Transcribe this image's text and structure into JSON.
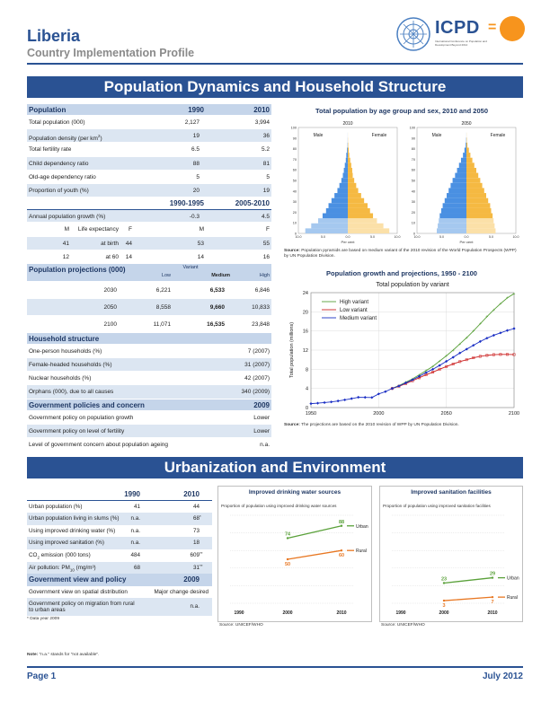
{
  "header": {
    "country": "Liberia",
    "subtitle": "Country Implementation Profile",
    "icpd_word": "ICPD",
    "icpd_eq": "=",
    "icpd_tag": "International Conference on Population and Development Beyond 2014"
  },
  "banners": {
    "section1": "Population Dynamics and Household Structure",
    "section2": "Urbanization and Environment"
  },
  "population": {
    "header": {
      "label": "Population",
      "y1": "1990",
      "y2": "2010"
    },
    "rows": [
      {
        "label": "Total population (000)",
        "v1": "2,127",
        "v2": "3,994"
      },
      {
        "label": "Population density (per km",
        "sup": "2",
        "tail": ")",
        "v1": "19",
        "v2": "36"
      },
      {
        "label": "Total fertility rate",
        "v1": "6.5",
        "v2": "5.2"
      },
      {
        "label": "Child dependency ratio",
        "v1": "88",
        "v2": "81"
      },
      {
        "label": "Old-age dependency ratio",
        "v1": "5",
        "v2": "5"
      },
      {
        "label": "Proportion of youth (%)",
        "v1": "20",
        "v2": "19"
      }
    ],
    "period_header": {
      "p1": "1990-1995",
      "p2": "2005-2010"
    },
    "growth": {
      "label": "Annual population growth (%)",
      "v1": "-0.3",
      "v2": "4.5"
    },
    "life": {
      "label": "Life expectancy",
      "mf": [
        "M",
        "F",
        "M",
        "F"
      ],
      "birth_label": "at birth",
      "birth": [
        "41",
        "44",
        "53",
        "55"
      ],
      "sixty_label": "at 60",
      "sixty": [
        "12",
        "14",
        "14",
        "16"
      ]
    }
  },
  "projections": {
    "title": "Population projections (000)",
    "variant_label": "Variant",
    "cols": [
      "Low",
      "Medium",
      "High"
    ],
    "rows": [
      {
        "year": "2030",
        "vals": [
          "6,221",
          "6,533",
          "6,846"
        ]
      },
      {
        "year": "2050",
        "vals": [
          "8,558",
          "9,660",
          "10,833"
        ]
      },
      {
        "year": "2100",
        "vals": [
          "11,071",
          "16,535",
          "23,848"
        ]
      }
    ]
  },
  "household": {
    "title": "Household structure",
    "rows": [
      {
        "label": "One-person households (%)",
        "value": "7 (2007)"
      },
      {
        "label": "Female-headed households (%)",
        "value": "31 (2007)"
      },
      {
        "label": "Nuclear households (%)",
        "value": "42 (2007)"
      },
      {
        "label": "Orphans (000), due to all causes",
        "value": "340 (2009)"
      }
    ]
  },
  "policies": {
    "title": "Government policies and concern",
    "year": "2009",
    "rows": [
      {
        "label": "Government policy on population growth",
        "value": "Lower"
      },
      {
        "label": "Government policy on level of fertility",
        "value": "Lower"
      },
      {
        "label": "Level of government concern about population ageing",
        "value": "n.a."
      }
    ]
  },
  "pyramid": {
    "title": "Total population by age group and sex, 2010 and 2050",
    "years": [
      "2010",
      "2050"
    ],
    "male_label": "Male",
    "female_label": "Female",
    "y_ticks": [
      "100",
      "90",
      "80",
      "70",
      "60",
      "50",
      "40",
      "30",
      "20",
      "10",
      "0"
    ],
    "x_ticks": [
      "10.0",
      "5.0",
      "0.0",
      "5.0",
      "10.0"
    ],
    "x_label": "Per cent",
    "source_bold": "Source:",
    "source_text": "Population pyramids are based on medium variant of the 2010 revision of the World Population Prospects (WPP) by UN Population Division."
  },
  "growth_chart": {
    "title": "Population growth and projections, 1950 - 2100",
    "subtitle": "Total population by variant",
    "ylabel": "Total population (millions)",
    "source_bold": "Source:",
    "source_text": "The projections are based on the 2010 revision of WPP by UN Population Division.",
    "colors": {
      "high": "#5aa13a",
      "low": "#cc2222",
      "medium": "#1b2fc4"
    }
  },
  "chart_data": [
    {
      "type": "bar",
      "title": "Total population by age group and sex, 2010 and 2050",
      "subtitle": "2010",
      "categories": [
        "0-4",
        "5-9",
        "10-14",
        "15-19",
        "20-24",
        "25-29",
        "30-34",
        "35-39",
        "40-44",
        "45-49",
        "50-54",
        "55-59",
        "60-64",
        "65-69",
        "70-74",
        "75-79",
        "80-84",
        "85-89",
        "90-94",
        "95-99",
        "100+"
      ],
      "series": [
        {
          "name": "Male",
          "values": [
            8.6,
            7.4,
            6.0,
            5.1,
            4.4,
            3.9,
            3.3,
            2.7,
            2.1,
            1.7,
            1.3,
            1.0,
            0.8,
            0.6,
            0.4,
            0.3,
            0.15,
            0.05,
            0.02,
            0.01,
            0
          ]
        },
        {
          "name": "Female",
          "values": [
            8.4,
            7.2,
            5.9,
            5.1,
            4.5,
            4.0,
            3.3,
            2.7,
            2.1,
            1.7,
            1.3,
            1.0,
            0.9,
            0.7,
            0.5,
            0.3,
            0.2,
            0.08,
            0.03,
            0.01,
            0
          ]
        }
      ],
      "xlabel": "Per cent",
      "xlim": [
        -10,
        10
      ],
      "ylim": [
        0,
        100
      ]
    },
    {
      "type": "bar",
      "title": "Total population by age group and sex, 2010 and 2050",
      "subtitle": "2050",
      "categories": [
        "0-4",
        "5-9",
        "10-14",
        "15-19",
        "20-24",
        "25-29",
        "30-34",
        "35-39",
        "40-44",
        "45-49",
        "50-54",
        "55-59",
        "60-64",
        "65-69",
        "70-74",
        "75-79",
        "80-84",
        "85-89",
        "90-94",
        "95-99",
        "100+"
      ],
      "series": [
        {
          "name": "Male",
          "values": [
            6.0,
            5.8,
            5.6,
            5.4,
            5.1,
            4.8,
            4.4,
            4.0,
            3.6,
            3.2,
            2.8,
            2.3,
            1.9,
            1.5,
            1.1,
            0.7,
            0.4,
            0.15,
            0.05,
            0.01,
            0
          ]
        },
        {
          "name": "Female",
          "values": [
            5.9,
            5.7,
            5.5,
            5.3,
            5.0,
            4.8,
            4.4,
            4.0,
            3.6,
            3.2,
            2.8,
            2.4,
            2.0,
            1.6,
            1.2,
            0.8,
            0.5,
            0.2,
            0.07,
            0.02,
            0
          ]
        }
      ],
      "xlabel": "Per cent",
      "xlim": [
        -10,
        10
      ],
      "ylim": [
        0,
        100
      ]
    },
    {
      "type": "line",
      "title": "Population growth and projections, 1950 - 2100",
      "subtitle": "Total population by variant",
      "ylabel": "Total population (millions)",
      "xlim": [
        1950,
        2100
      ],
      "ylim": [
        0,
        24
      ],
      "x_ticks": [
        1950,
        2000,
        2050,
        2100
      ],
      "y_ticks": [
        0,
        4,
        8,
        12,
        16,
        20,
        24
      ],
      "legend": "top-left",
      "historical": {
        "x": [
          1950,
          1955,
          1960,
          1965,
          1970,
          1975,
          1980,
          1985,
          1990,
          1995,
          2000,
          2005,
          2010
        ],
        "y": [
          0.82,
          0.92,
          1.04,
          1.18,
          1.38,
          1.61,
          1.87,
          2.15,
          2.13,
          2.1,
          2.85,
          3.33,
          3.99
        ]
      },
      "series": [
        {
          "name": "High variant",
          "x": [
            2010,
            2015,
            2020,
            2025,
            2030,
            2035,
            2040,
            2045,
            2050,
            2055,
            2060,
            2065,
            2070,
            2075,
            2080,
            2085,
            2090,
            2095,
            2100
          ],
          "y": [
            3.99,
            4.6,
            5.3,
            6.0,
            6.85,
            7.7,
            8.6,
            9.7,
            10.8,
            12.0,
            13.3,
            14.6,
            16.0,
            17.5,
            19.0,
            20.4,
            21.7,
            22.9,
            23.8
          ]
        },
        {
          "name": "Low variant",
          "x": [
            2010,
            2015,
            2020,
            2025,
            2030,
            2035,
            2040,
            2045,
            2050,
            2055,
            2060,
            2065,
            2070,
            2075,
            2080,
            2085,
            2090,
            2095,
            2100
          ],
          "y": [
            3.99,
            4.45,
            5.0,
            5.6,
            6.22,
            6.85,
            7.4,
            8.0,
            8.56,
            9.1,
            9.6,
            10.0,
            10.4,
            10.7,
            10.9,
            11.05,
            11.1,
            11.1,
            11.07
          ]
        },
        {
          "name": "Medium variant",
          "x": [
            2010,
            2015,
            2020,
            2025,
            2030,
            2035,
            2040,
            2045,
            2050,
            2055,
            2060,
            2065,
            2070,
            2075,
            2080,
            2085,
            2090,
            2095,
            2100
          ],
          "y": [
            3.99,
            4.5,
            5.15,
            5.8,
            6.53,
            7.3,
            8.0,
            8.8,
            9.66,
            10.5,
            11.4,
            12.2,
            13.0,
            13.8,
            14.5,
            15.1,
            15.6,
            16.1,
            16.5
          ]
        }
      ]
    },
    {
      "type": "line",
      "title": "Improved drinking water sources",
      "subtitle": "Proportion of population using improved drinking water sources",
      "x_ticks": [
        "1990",
        "2000",
        "2010"
      ],
      "ylim": [
        0,
        100
      ],
      "series": [
        {
          "name": "Urban",
          "x": [
            2000,
            2010
          ],
          "y": [
            74,
            88
          ]
        },
        {
          "name": "Rural",
          "x": [
            2000,
            2010
          ],
          "y": [
            50,
            60
          ]
        }
      ],
      "source": "Source: UNICEF/WHO"
    },
    {
      "type": "line",
      "title": "Improved sanitation facilities",
      "subtitle": "Proportion of population using improved sanitation facilities",
      "x_ticks": [
        "1990",
        "2000",
        "2010"
      ],
      "ylim": [
        0,
        100
      ],
      "series": [
        {
          "name": "Urban",
          "x": [
            2000,
            2010
          ],
          "y": [
            23,
            29
          ]
        },
        {
          "name": "Rural",
          "x": [
            2000,
            2010
          ],
          "y": [
            3,
            7
          ]
        }
      ],
      "source": "Source: UNICEF/WHO"
    }
  ],
  "urban": {
    "cols": [
      "1990",
      "2010"
    ],
    "rows": [
      {
        "label": "Urban population (%)",
        "v1": "41",
        "v2": "44",
        "note": ""
      },
      {
        "label": "Urban population living in slums (%)",
        "v1": "n.a.",
        "v2": "68",
        "note": "*"
      },
      {
        "label": "Using improved drinking water (%)",
        "v1": "n.a.",
        "v2": "73",
        "note": ""
      },
      {
        "label": "Using improved sanitation (%)",
        "v1": "n.a.",
        "v2": "18",
        "note": ""
      },
      {
        "label": "CO",
        "sub": "2",
        "tail": " emission (000 tons)",
        "v1": "484",
        "v2": "609",
        "note": "**"
      },
      {
        "label": "Air pollution: PM",
        "sub": "10",
        "tail": " (mg/m³)",
        "v1": "68",
        "v2": "31",
        "note": "**"
      }
    ],
    "policy_title": "Government view and policy",
    "policy_year": "2009",
    "policy_rows": [
      {
        "label": "Government view on spatial distribution",
        "value": "Major change desired"
      },
      {
        "label": "Government policy on migration from rural to urban areas",
        "value": "n.a."
      }
    ],
    "footnote": "* Data year 2009"
  },
  "water_chart": {
    "title": "Improved drinking water sources",
    "subtitle": "Proportion of population using improved drinking water sources",
    "source": "Source: UNICEF/WHO",
    "urban_label": "Urban",
    "rural_label": "Rural",
    "colors": {
      "urban": "#5aa13a",
      "rural": "#e87722"
    }
  },
  "sanit_chart": {
    "title": "Improved sanitation facilities",
    "subtitle": "Proportion of population using improved sanitation facilities",
    "source": "Source: UNICEF/WHO",
    "urban_label": "Urban",
    "rural_label": "Rural"
  },
  "note": {
    "bold": "Note:",
    "text": " \"n.a.\" stands for \"not available\"."
  },
  "footer": {
    "page": "Page 1",
    "date": "July 2012"
  },
  "colors": {
    "brand": "#2a5293",
    "row_alt": "#dce6f2",
    "male": "#4a90e2",
    "female": "#f5b942"
  }
}
